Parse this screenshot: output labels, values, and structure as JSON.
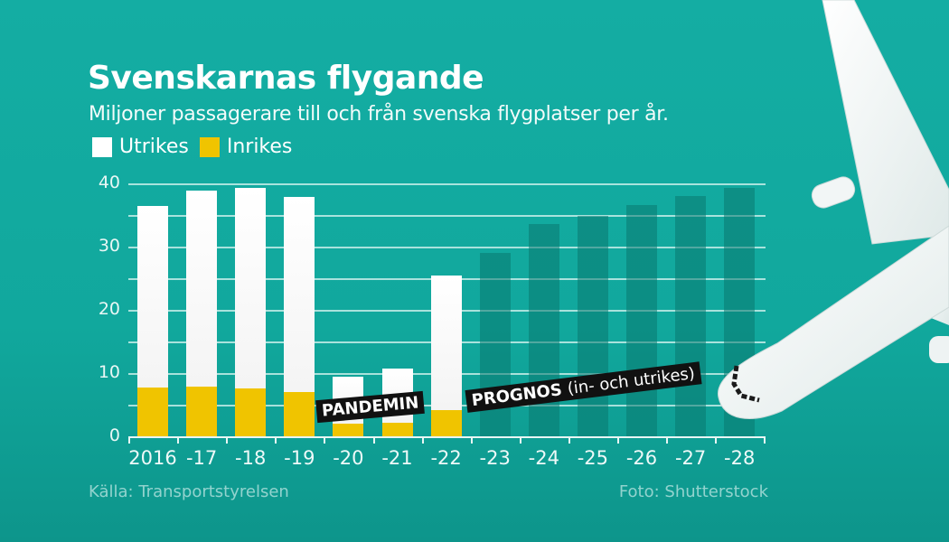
{
  "title": "Svenskarnas flygande",
  "subtitle": "Miljoner passagerare till och från svenska flygplatser per år.",
  "legend": [
    {
      "label": "Utrikes",
      "color": "#ffffff"
    },
    {
      "label": "Inrikes",
      "color": "#f0c400"
    }
  ],
  "annotations": {
    "pandemin": "PANDEMIN",
    "prognos_bold": "PROGNOS",
    "prognos_thin": "(in- och utrikes)"
  },
  "source": "Källa: Transportstyrelsen",
  "photo_credit": "Foto: Shutterstock",
  "colors": {
    "background": "#12aa9f",
    "inrikes": "#f0c400",
    "utrikes": "#ffffff",
    "forecast": "#0b8a80"
  },
  "chart_data": {
    "type": "bar",
    "title": "Svenskarnas flygande",
    "subtitle": "Miljoner passagerare till och från svenska flygplatser per år.",
    "xlabel": "",
    "ylabel": "Miljoner passagerare",
    "ylim": [
      0,
      40
    ],
    "yticks": [
      0,
      10,
      20,
      30,
      40
    ],
    "grid": true,
    "legend_position": "top-left",
    "stacked": true,
    "categories": [
      "2016",
      "-17",
      "-18",
      "-19",
      "-20",
      "-21",
      "-22",
      "-23",
      "-24",
      "-25",
      "-26",
      "-27",
      "-28"
    ],
    "series": [
      {
        "name": "Inrikes",
        "values": [
          7.7,
          7.9,
          7.6,
          7.0,
          2.0,
          2.1,
          4.2,
          null,
          null,
          null,
          null,
          null,
          null
        ]
      },
      {
        "name": "Utrikes",
        "values": [
          28.7,
          31.0,
          31.7,
          30.9,
          7.4,
          8.6,
          21.2,
          null,
          null,
          null,
          null,
          null,
          null
        ]
      },
      {
        "name": "Prognos (in- och utrikes)",
        "values": [
          null,
          null,
          null,
          null,
          null,
          null,
          null,
          29.0,
          33.6,
          34.9,
          36.6,
          38.0,
          39.3
        ]
      }
    ],
    "totals": [
      36.4,
      38.9,
      39.3,
      37.9,
      9.4,
      10.7,
      25.4,
      29.0,
      33.6,
      34.9,
      36.6,
      38.0,
      39.3
    ],
    "annotations": [
      "PANDEMIN",
      "PROGNOS (in- och utrikes)"
    ]
  }
}
